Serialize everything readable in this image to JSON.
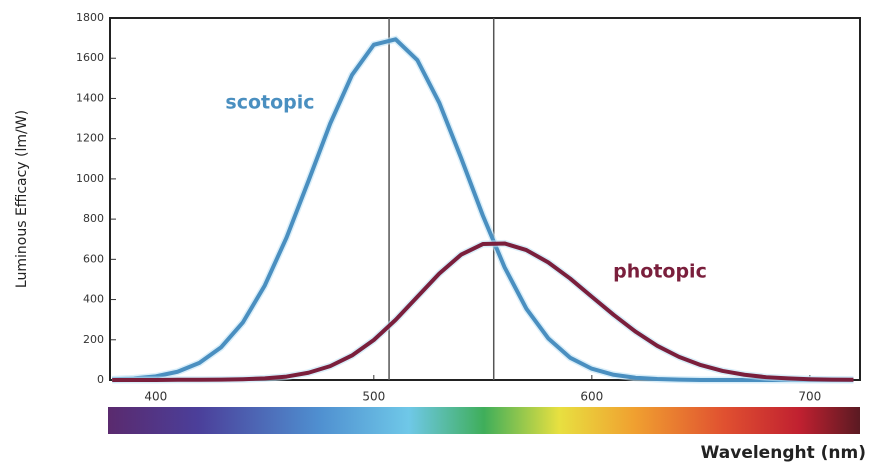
{
  "chart_data": {
    "type": "line",
    "y_label": "Luminous Efficacy (lm/W)",
    "x_label": "Wavelenght (nm)",
    "x": [
      380,
      390,
      400,
      410,
      420,
      430,
      440,
      450,
      460,
      470,
      480,
      490,
      500,
      510,
      520,
      530,
      540,
      550,
      560,
      570,
      580,
      590,
      600,
      610,
      620,
      630,
      640,
      650,
      660,
      670,
      680,
      690,
      700,
      710,
      720
    ],
    "series": [
      {
        "name": "scotopic",
        "color": "#4a8fc0",
        "values": [
          3,
          8,
          18,
          41,
          85,
          163,
          287,
          470,
          709,
          989,
          1275,
          1517,
          1667,
          1694,
          1590,
          1379,
          1105,
          818,
          560,
          354,
          207,
          111,
          56,
          26,
          11,
          5,
          2,
          0,
          0,
          0,
          0,
          0,
          0,
          0,
          0
        ]
      },
      {
        "name": "photopic",
        "color": "#7a1f3c",
        "values": [
          0,
          0,
          0,
          1,
          1,
          2,
          4,
          8,
          17,
          36,
          69,
          122,
          199,
          299,
          414,
          529,
          623,
          676,
          679,
          646,
          585,
          505,
          414,
          324,
          241,
          170,
          115,
          74,
          45,
          26,
          14,
          8,
          4,
          2,
          1
        ]
      }
    ],
    "vlines": [
      507,
      555
    ],
    "xlim": [
      379,
      723
    ],
    "ylim": [
      0,
      1800
    ],
    "xticks": [
      400,
      500,
      600,
      700
    ],
    "yticks": [
      0,
      200,
      400,
      600,
      800,
      1000,
      1200,
      1400,
      1600,
      1800
    ],
    "grid": false
  }
}
